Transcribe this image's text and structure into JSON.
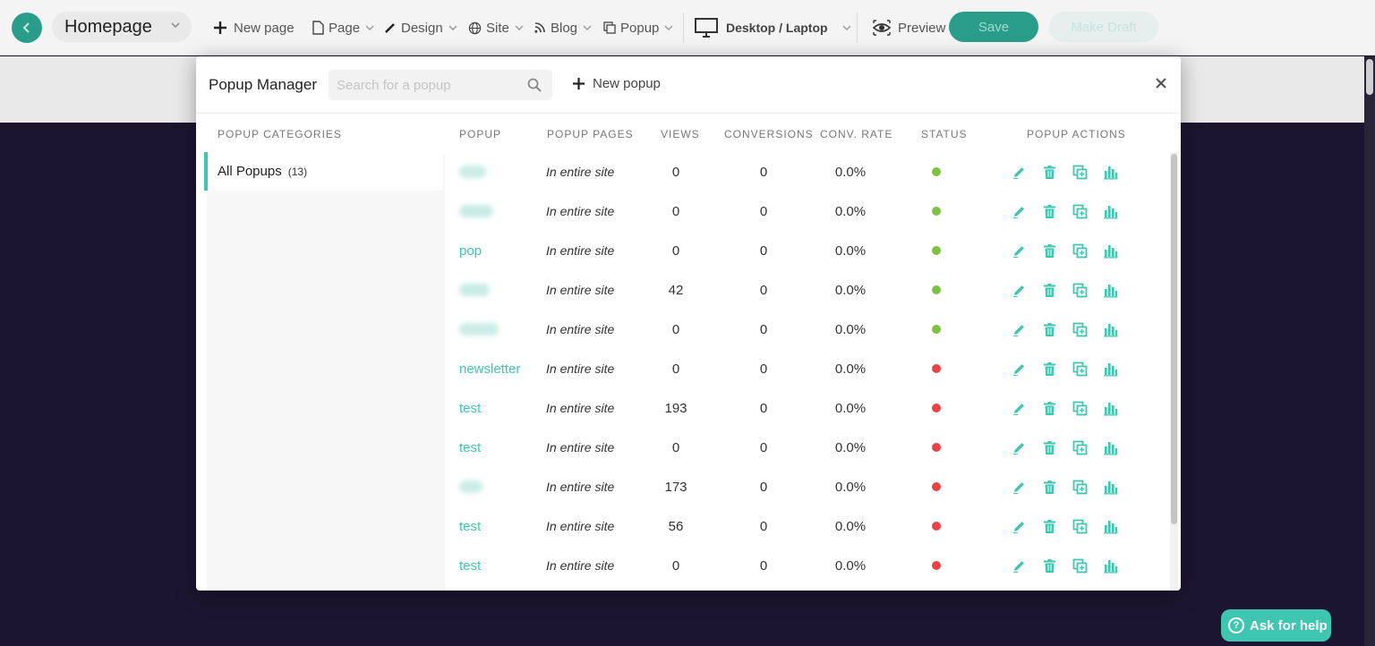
{
  "topbar": {
    "page_name": "Homepage",
    "new_page": "New page",
    "page": "Page",
    "design": "Design",
    "site": "Site",
    "blog": "Blog",
    "popup": "Popup",
    "device": "Desktop / Laptop",
    "preview": "Preview",
    "save": "Save",
    "make_draft": "Make Draft"
  },
  "modal": {
    "title": "Popup Manager",
    "search_placeholder": "Search for a popup",
    "new_popup": "New popup",
    "categories_header": "POPUP CATEGORIES",
    "category": {
      "label": "All Popups",
      "count": "(13)"
    },
    "columns": {
      "popup": "POPUP",
      "pages": "POPUP PAGES",
      "views": "VIEWS",
      "conversions": "CONVERSIONS",
      "rate": "CONV. RATE",
      "status": "STATUS",
      "actions": "POPUP ACTIONS"
    },
    "rows": [
      {
        "name": "",
        "pages": "In entire site",
        "views": "0",
        "conversions": "0",
        "rate": "0.0%",
        "status": "active"
      },
      {
        "name": "",
        "pages": "In entire site",
        "views": "0",
        "conversions": "0",
        "rate": "0.0%",
        "status": "active"
      },
      {
        "name": "pop",
        "pages": "In entire site",
        "views": "0",
        "conversions": "0",
        "rate": "0.0%",
        "status": "active"
      },
      {
        "name": "",
        "pages": "In entire site",
        "views": "42",
        "conversions": "0",
        "rate": "0.0%",
        "status": "active"
      },
      {
        "name": "",
        "pages": "In entire site",
        "views": "0",
        "conversions": "0",
        "rate": "0.0%",
        "status": "active"
      },
      {
        "name": "newsletter",
        "pages": "In entire site",
        "views": "0",
        "conversions": "0",
        "rate": "0.0%",
        "status": "inactive"
      },
      {
        "name": "test",
        "pages": "In entire site",
        "views": "193",
        "conversions": "0",
        "rate": "0.0%",
        "status": "inactive"
      },
      {
        "name": "test",
        "pages": "In entire site",
        "views": "0",
        "conversions": "0",
        "rate": "0.0%",
        "status": "inactive"
      },
      {
        "name": "",
        "pages": "In entire site",
        "views": "173",
        "conversions": "0",
        "rate": "0.0%",
        "status": "inactive"
      },
      {
        "name": "test",
        "pages": "In entire site",
        "views": "56",
        "conversions": "0",
        "rate": "0.0%",
        "status": "inactive"
      },
      {
        "name": "test",
        "pages": "In entire site",
        "views": "0",
        "conversions": "0",
        "rate": "0.0%",
        "status": "inactive"
      }
    ]
  },
  "help": "Ask for help",
  "colors": {
    "accent": "#3fc6b0",
    "active": "#7dc242",
    "inactive": "#e84343",
    "dark_teal": "#2a9d8a"
  },
  "icons": [
    "back-arrow-icon",
    "chevron-down-icon",
    "plus-icon",
    "page-icon",
    "pencil-icon",
    "globe-icon",
    "rss-icon",
    "copy-icon",
    "monitor-icon",
    "eye-icon",
    "search-icon",
    "close-icon",
    "edit-icon",
    "trash-icon",
    "duplicate-icon",
    "stats-icon",
    "question-icon"
  ]
}
